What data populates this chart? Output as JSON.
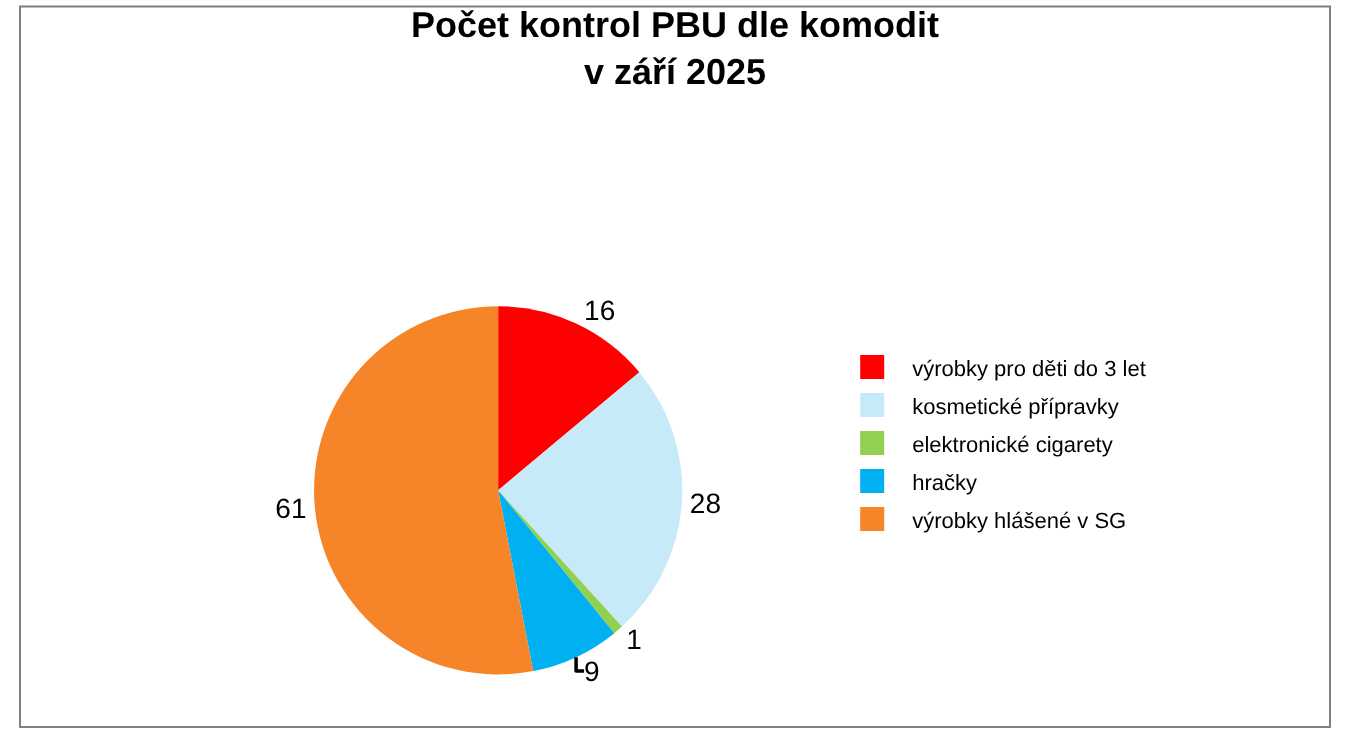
{
  "chart_data": {
    "type": "pie",
    "title": "Počet kontrol PBU dle komodit\nv září 2025",
    "categories": [
      "výrobky pro děti do 3 let",
      "kosmetické přípravky",
      "elektronické cigarety",
      "hračky",
      "výrobky hlášené v SG"
    ],
    "values": [
      16,
      28,
      1,
      9,
      61
    ],
    "colors": [
      "#ff0000",
      "#c6eaf8",
      "#92d050",
      "#00b0f0",
      "#f68428"
    ],
    "data_labels": true,
    "legend": "right"
  }
}
